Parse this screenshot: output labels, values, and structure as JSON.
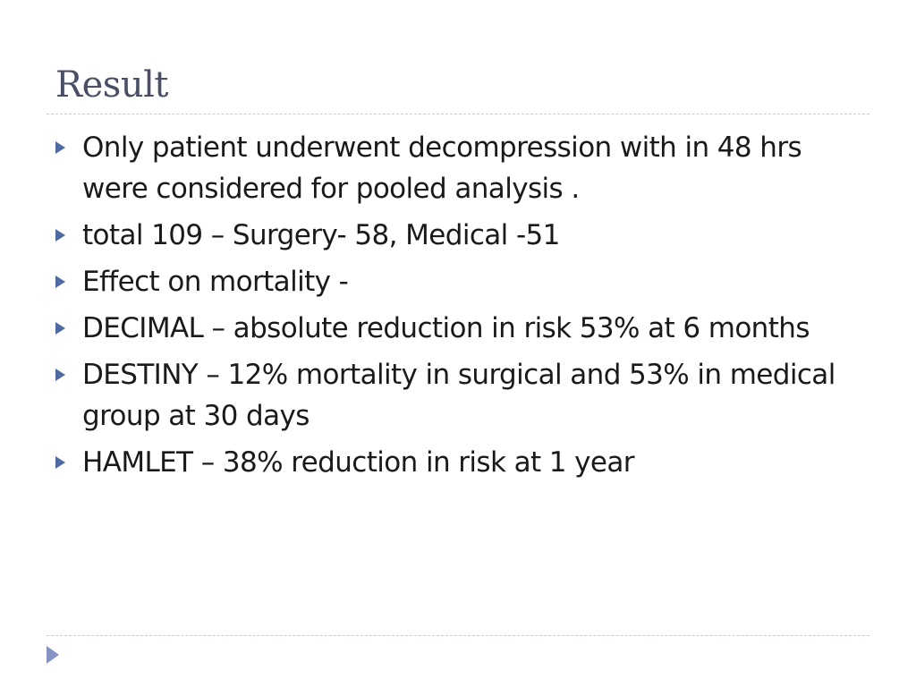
{
  "slide": {
    "title": "Result",
    "bullets": [
      "Only patient underwent decompression with in 48 hrs were considered for pooled analysis .",
      "total 109 – Surgery- 58, Medical -51",
      "Effect on mortality -",
      "DECIMAL – absolute reduction in risk 53% at 6 months",
      "DESTINY – 12% mortality in surgical and 53% in medical group at 30 days",
      "HAMLET – 38% reduction in risk at 1 year"
    ]
  }
}
